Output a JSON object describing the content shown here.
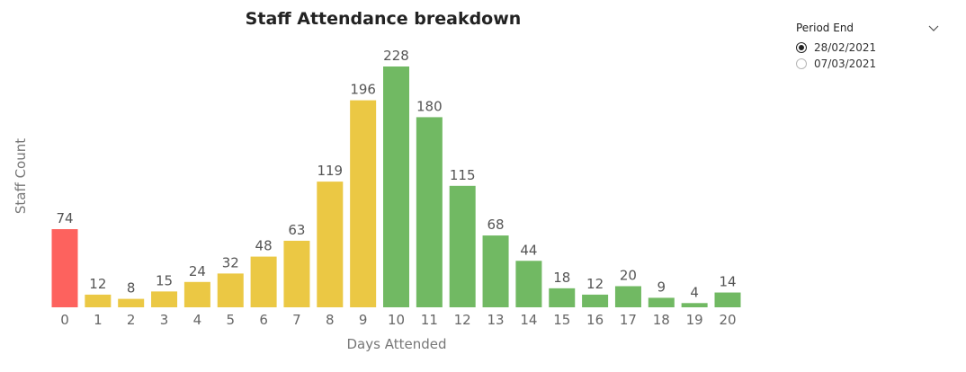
{
  "chart_data": {
    "type": "bar",
    "title": "Staff Attendance breakdown",
    "xlabel": "Days Attended",
    "ylabel": "Staff Count",
    "categories": [
      "0",
      "1",
      "2",
      "3",
      "4",
      "5",
      "6",
      "7",
      "8",
      "9",
      "10",
      "11",
      "12",
      "13",
      "14",
      "15",
      "16",
      "17",
      "18",
      "19",
      "20"
    ],
    "values": [
      74,
      12,
      8,
      15,
      24,
      32,
      48,
      63,
      119,
      196,
      228,
      180,
      115,
      68,
      44,
      18,
      12,
      20,
      9,
      4,
      14
    ],
    "ylim": [
      0,
      228
    ],
    "grid": false,
    "data_labels": true,
    "colors": {
      "red": "#fd625e",
      "yellow": "#ebc844",
      "green": "#71b963"
    },
    "bar_color_groups": [
      "red",
      "yellow",
      "yellow",
      "yellow",
      "yellow",
      "yellow",
      "yellow",
      "yellow",
      "yellow",
      "yellow",
      "green",
      "green",
      "green",
      "green",
      "green",
      "green",
      "green",
      "green",
      "green",
      "green",
      "green"
    ]
  },
  "slicer": {
    "title": "Period End",
    "dropdown_icon": "chevron-down-icon",
    "options": [
      {
        "label": "28/02/2021",
        "selected": true
      },
      {
        "label": "07/03/2021",
        "selected": false
      }
    ]
  }
}
